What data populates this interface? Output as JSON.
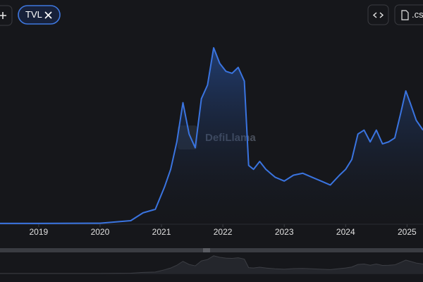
{
  "ui": {
    "tvl_chip": "TVL",
    "csv_button": ".cs"
  },
  "chart_data": {
    "type": "area",
    "watermark": "DefiLlama",
    "color": "#3a74e0",
    "x": [
      2018.37,
      2019,
      2020,
      2020.5,
      2020.7,
      2020.9,
      2021.05,
      2021.15,
      2021.25,
      2021.35,
      2021.45,
      2021.55,
      2021.65,
      2021.75,
      2021.85,
      2021.95,
      2022.05,
      2022.15,
      2022.25,
      2022.35,
      2022.42,
      2022.5,
      2022.6,
      2022.7,
      2022.85,
      2023,
      2023.15,
      2023.3,
      2023.45,
      2023.6,
      2023.75,
      2023.9,
      2024,
      2024.1,
      2024.2,
      2024.3,
      2024.4,
      2024.5,
      2024.6,
      2024.7,
      2024.8,
      2024.9,
      2024.98,
      2025.05,
      2025.15,
      2025.26
    ],
    "values": [
      0.4,
      0.4,
      0.5,
      1.8,
      5.8,
      7.6,
      19,
      28,
      42,
      62,
      46,
      39,
      64,
      71,
      90,
      82,
      78,
      77,
      80,
      73,
      30,
      28,
      32,
      28,
      24,
      22,
      25,
      26,
      24,
      22,
      20,
      25,
      28,
      33,
      46,
      48,
      42,
      48,
      41,
      42,
      44,
      57,
      68,
      62,
      53,
      48
    ],
    "xlim": [
      2018.37,
      2025.26
    ],
    "ylim": [
      0,
      100
    ],
    "xticks": [
      2019,
      2020,
      2021,
      2022,
      2023,
      2024,
      2025
    ]
  }
}
